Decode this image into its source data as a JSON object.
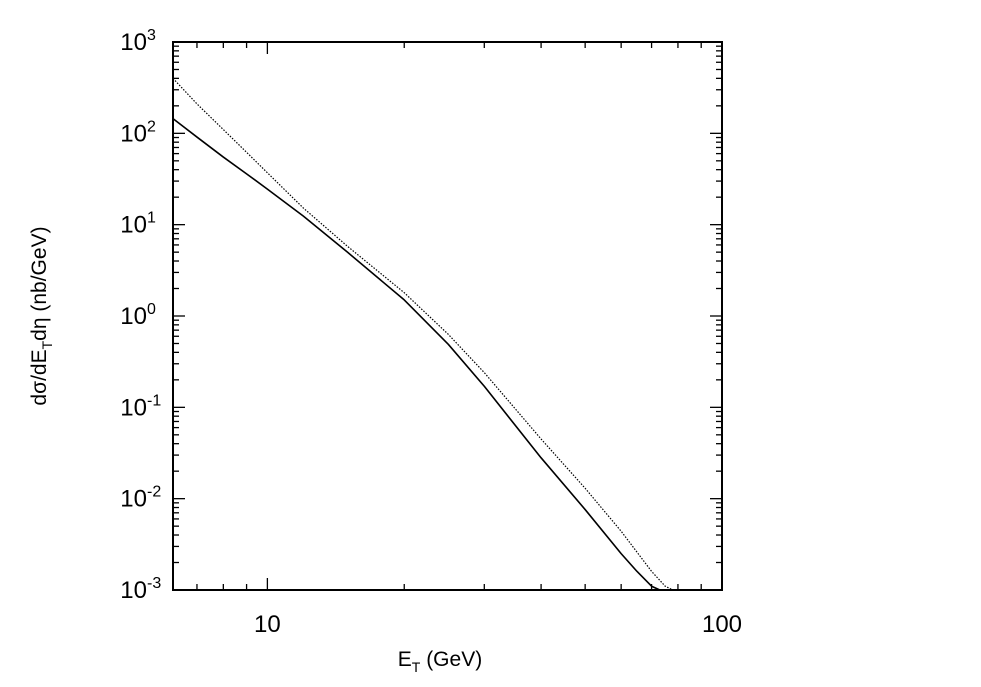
{
  "chart_data": {
    "type": "line",
    "title": "",
    "xlabel": {
      "main": "E",
      "sub": "T",
      "rest": " (GeV)"
    },
    "ylabel": {
      "pre": "dσ/dE",
      "sub": "T",
      "post": "dη (nb/GeV)"
    },
    "xscale": "log",
    "yscale": "log",
    "xlim": [
      6.2,
      100
    ],
    "ylim": [
      0.001,
      1000
    ],
    "grid": false,
    "legend": "none",
    "x_tick_labels": [
      {
        "value": 10,
        "text": "10"
      },
      {
        "value": 100,
        "text": "100"
      }
    ],
    "y_tick_labels": [
      {
        "value": 0.001,
        "base": "10",
        "exp": "-3"
      },
      {
        "value": 0.01,
        "base": "10",
        "exp": "-2"
      },
      {
        "value": 0.1,
        "base": "10",
        "exp": "-1"
      },
      {
        "value": 1,
        "base": "10",
        "exp": "0"
      },
      {
        "value": 10,
        "base": "10",
        "exp": "1"
      },
      {
        "value": 100,
        "base": "10",
        "exp": "2"
      },
      {
        "value": 1000,
        "base": "10",
        "exp": "3"
      }
    ],
    "series": [
      {
        "style": "solid",
        "color": "#000000",
        "x": [
          6.2,
          7,
          8,
          9,
          10,
          12,
          15,
          20,
          25,
          30,
          40,
          50,
          60,
          65,
          70,
          73
        ],
        "y": [
          145,
          91,
          55,
          36,
          24.5,
          12.4,
          5.0,
          1.5,
          0.49,
          0.17,
          0.028,
          0.0076,
          0.0025,
          0.0016,
          0.0011,
          0.001
        ]
      },
      {
        "style": "dotted",
        "color": "#000000",
        "x": [
          6.2,
          7,
          8,
          9,
          10,
          12,
          15,
          20,
          25,
          30,
          40,
          50,
          60,
          70,
          75,
          78
        ],
        "y": [
          400,
          210,
          110,
          62,
          37,
          15.2,
          5.8,
          1.8,
          0.63,
          0.24,
          0.045,
          0.013,
          0.0044,
          0.0016,
          0.0011,
          0.001
        ]
      }
    ]
  }
}
